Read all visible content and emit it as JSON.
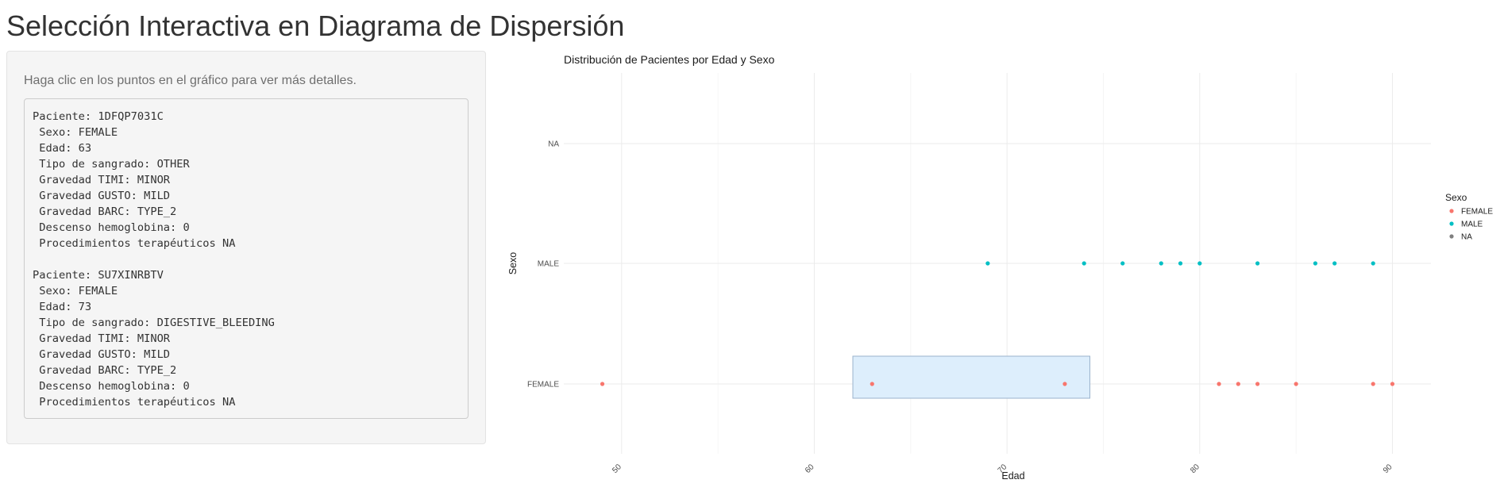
{
  "page": {
    "title": "Selección Interactiva en Diagrama de Dispersión"
  },
  "sidebar": {
    "instructions": "Haga clic en los puntos en el gráfico para ver más detalles.",
    "details_lines": [
      "Paciente: 1DFQP7031C",
      " Sexo: FEMALE",
      " Edad: 63",
      " Tipo de sangrado: OTHER",
      " Gravedad TIMI: MINOR",
      " Gravedad GUSTO: MILD",
      " Gravedad BARC: TYPE_2",
      " Descenso hemoglobina: 0",
      " Procedimientos terapéuticos NA",
      "",
      "Paciente: SU7XINRBTV",
      " Sexo: FEMALE",
      " Edad: 73",
      " Tipo de sangrado: DIGESTIVE_BLEEDING",
      " Gravedad TIMI: MINOR",
      " Gravedad GUSTO: MILD",
      " Gravedad BARC: TYPE_2",
      " Descenso hemoglobina: 0",
      " Procedimientos terapéuticos NA"
    ]
  },
  "chart_data": {
    "type": "scatter",
    "title": "Distribución de Pacientes por Edad y Sexo",
    "xlabel": "Edad",
    "ylabel": "Sexo",
    "xlim": [
      47,
      92
    ],
    "x_ticks": [
      50,
      60,
      70,
      80,
      90
    ],
    "x_tick_labels": [
      "50",
      "60",
      "70",
      "80",
      "90"
    ],
    "y_categories": [
      "FEMALE",
      "MALE",
      "NA"
    ],
    "grid": true,
    "legend": {
      "title": "Sexo",
      "position": "right",
      "entries": [
        {
          "label": "FEMALE",
          "color": "#F8766D"
        },
        {
          "label": "MALE",
          "color": "#00BFC4"
        },
        {
          "label": "NA",
          "color": "#7F7F7F"
        }
      ]
    },
    "series": [
      {
        "category": "FEMALE",
        "color": "#F8766D",
        "x": [
          49,
          63,
          73,
          81,
          82,
          83,
          85,
          89,
          90
        ]
      },
      {
        "category": "MALE",
        "color": "#00BFC4",
        "x": [
          69,
          74,
          76,
          78,
          79,
          80,
          83,
          86,
          87,
          89
        ]
      }
    ],
    "selection_brush": {
      "x_range": [
        62,
        74.3
      ],
      "category": "FEMALE",
      "fill": "#ddeefc",
      "stroke": "#9ab3cc"
    }
  }
}
